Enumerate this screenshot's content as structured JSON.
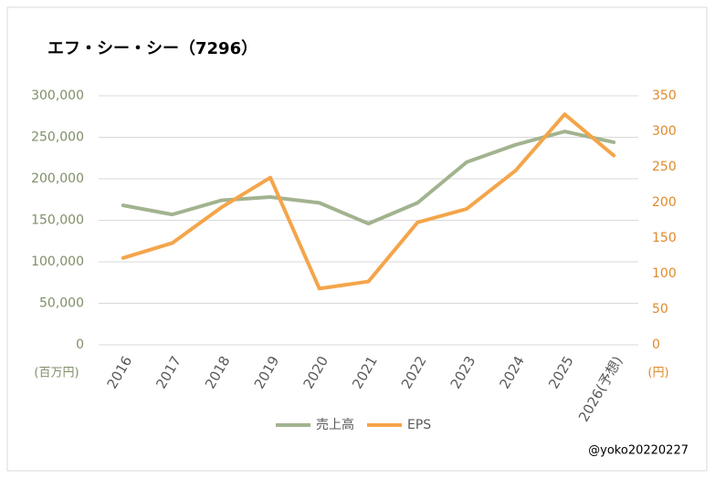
{
  "chart_data": {
    "type": "line",
    "title": "エフ・シー・シー（7296）",
    "y_unit": "(百万円)",
    "y2_unit": "(円)",
    "credit": "@yoko20220227",
    "categories": [
      "2016",
      "2017",
      "2018",
      "2019",
      "2020",
      "2021",
      "2022",
      "2023",
      "2024",
      "2025",
      "2026(予想)"
    ],
    "series": [
      {
        "name": "売上高",
        "color": "#a2b38f",
        "values": [
          168000,
          157000,
          174000,
          178000,
          171000,
          146000,
          171000,
          220000,
          241000,
          257000,
          244000
        ]
      },
      {
        "name": "EPS",
        "color": "#f4a54a",
        "axis": "y2",
        "values": [
          122,
          143,
          193,
          235,
          79,
          89,
          172,
          191,
          245,
          324,
          266
        ]
      }
    ],
    "ylim": [
      0,
      300000
    ],
    "yticks": [
      {
        "value": 0,
        "label": "0"
      },
      {
        "value": 50000,
        "label": "50,000"
      },
      {
        "value": 100000,
        "label": "100,000"
      },
      {
        "value": 150000,
        "label": "150,000"
      },
      {
        "value": 200000,
        "label": "200,000"
      },
      {
        "value": 250000,
        "label": "250,000"
      },
      {
        "value": 300000,
        "label": "300,000"
      }
    ],
    "y2lim": [
      0,
      350
    ],
    "y2ticks": [
      0,
      50,
      100,
      150,
      200,
      250,
      300,
      350
    ],
    "grid": true
  }
}
